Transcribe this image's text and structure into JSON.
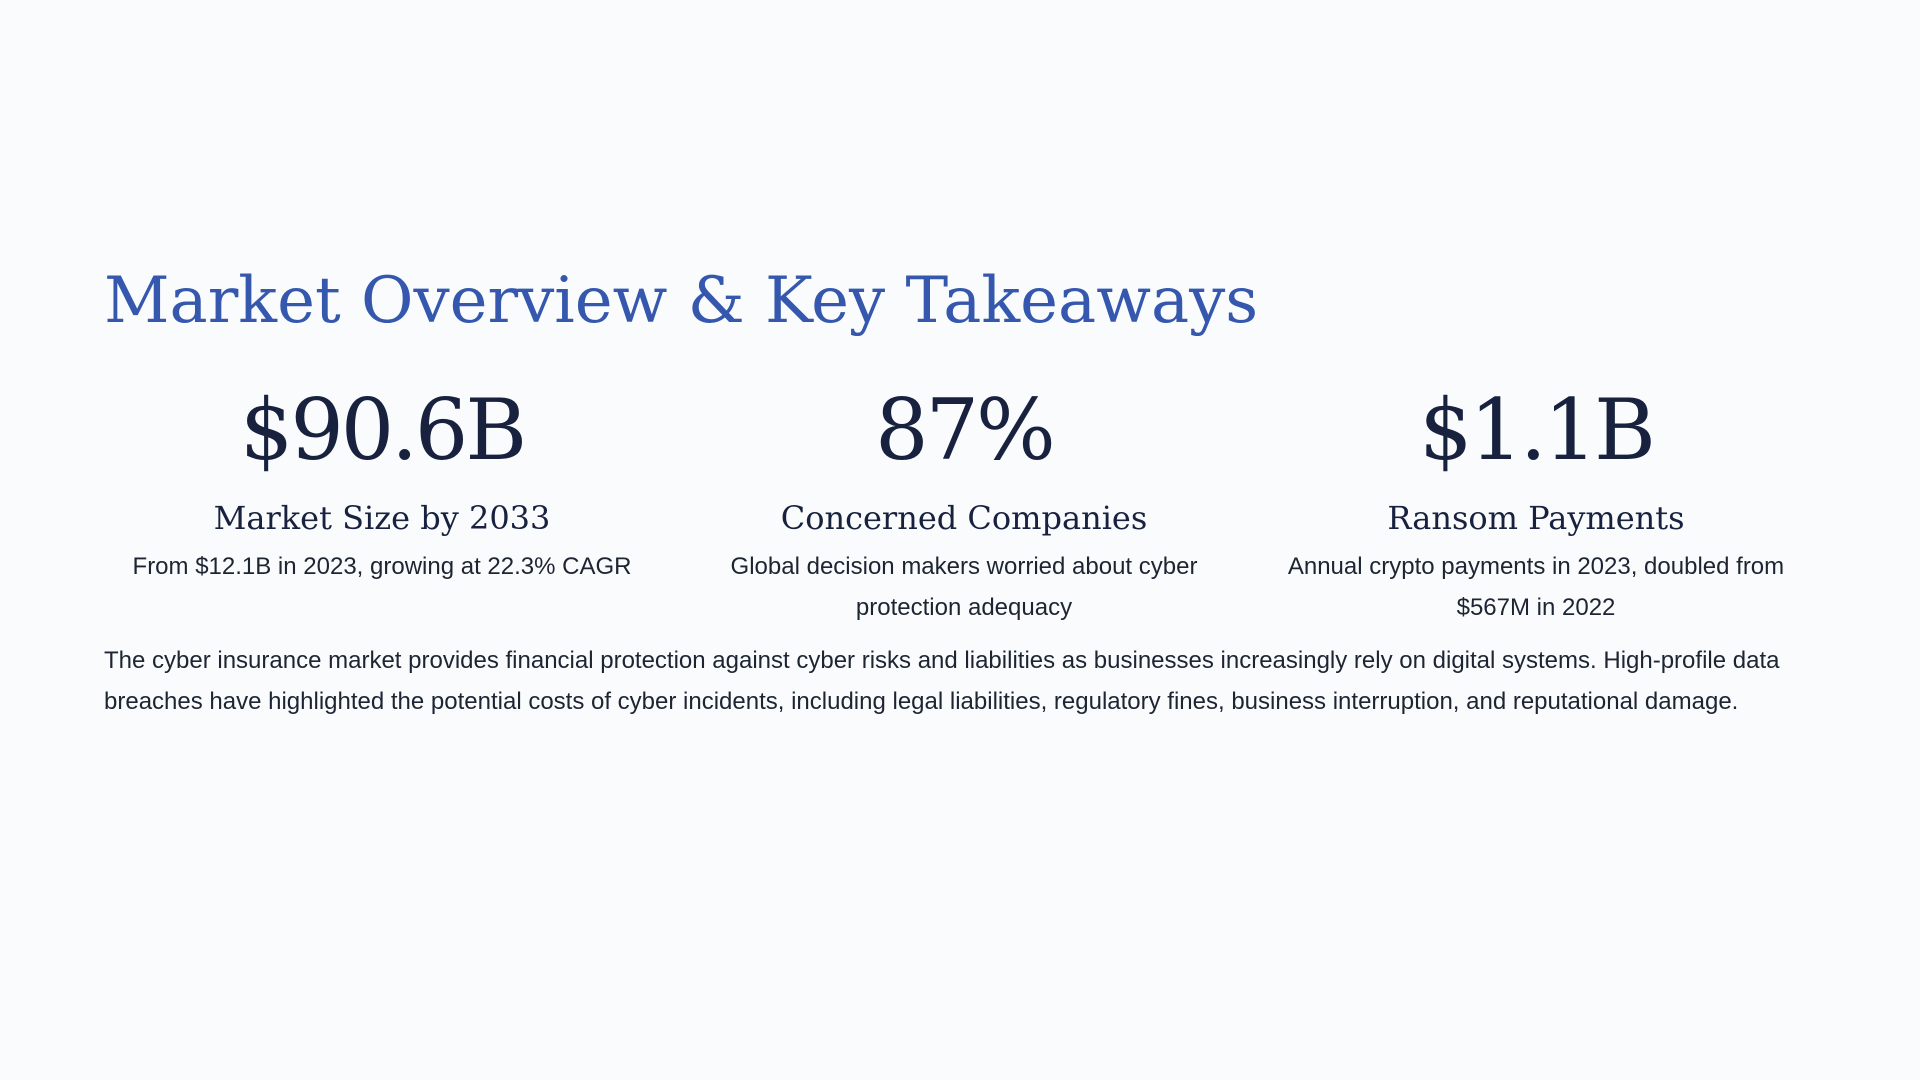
{
  "slide": {
    "title": "Market Overview & Key Takeaways",
    "stats": [
      {
        "value": "$90.6B",
        "label": "Market Size by 2033",
        "description": "From $12.1B in 2023, growing at 22.3% CAGR"
      },
      {
        "value": "87%",
        "label": "Concerned Companies",
        "description": "Global decision makers worried about cyber protection adequacy"
      },
      {
        "value": "$1.1B",
        "label": "Ransom Payments",
        "description": "Annual crypto payments in 2023, doubled from $567M in 2022"
      }
    ],
    "body": "The cyber insurance market provides financial protection against cyber risks and liabilities as businesses increasingly rely on digital systems. High-profile data breaches have highlighted the potential costs of cyber incidents, including legal liabilities, regulatory fines, business interruption, and reputational damage."
  },
  "colors": {
    "background": "#f9fbfd",
    "title": "#3558ae",
    "stat_value": "#18223f",
    "text": "#1d2533"
  }
}
